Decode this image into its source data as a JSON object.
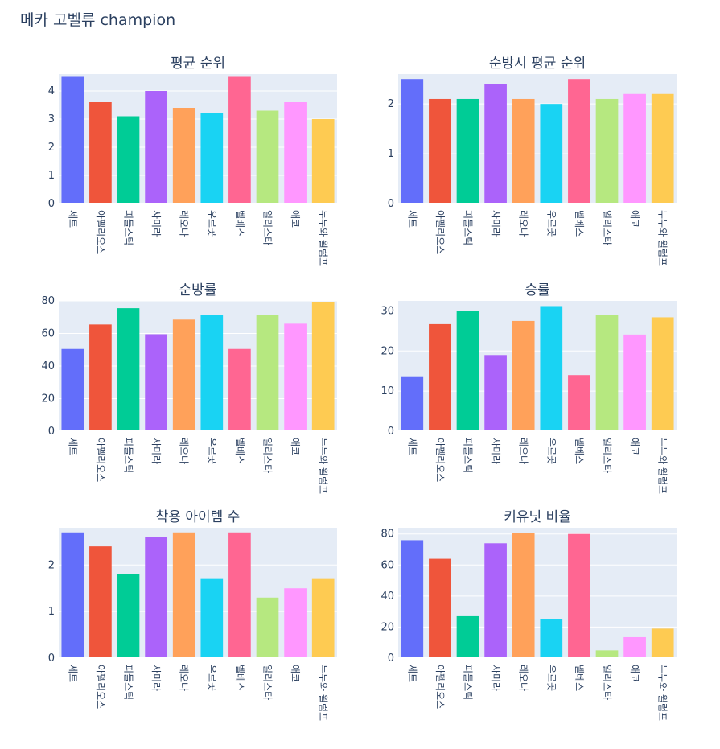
{
  "figure_title": "메카 고벨류 champion",
  "chart_data": [
    {
      "type": "bar",
      "title": "평균 순위",
      "categories": [
        "세트",
        "아펠리오스",
        "피들스틱",
        "사미라",
        "레오나",
        "우르곳",
        "벨베스",
        "일리스타",
        "애코",
        "누누와 윌럼프"
      ],
      "values": [
        4.5,
        3.6,
        3.1,
        4.0,
        3.4,
        3.2,
        4.5,
        3.3,
        3.6,
        3.0
      ],
      "ylim": [
        0,
        4.6
      ],
      "yticks": [
        0,
        1,
        2,
        3,
        4
      ],
      "colors": [
        "#636efa",
        "#ef553b",
        "#00cc96",
        "#ab63fa",
        "#ffa15a",
        "#19d3f3",
        "#ff6692",
        "#b6e880",
        "#ff97ff",
        "#fecb52"
      ]
    },
    {
      "type": "bar",
      "title": "순방시 평균 순위",
      "categories": [
        "세트",
        "아펠리오스",
        "피들스틱",
        "사미라",
        "레오나",
        "우르곳",
        "벨베스",
        "일리스타",
        "애코",
        "누누와 윌럼프"
      ],
      "values": [
        2.5,
        2.1,
        2.1,
        2.4,
        2.1,
        2.0,
        2.5,
        2.1,
        2.2,
        2.2
      ],
      "ylim": [
        0,
        2.6
      ],
      "yticks": [
        0,
        1,
        2
      ],
      "colors": [
        "#636efa",
        "#ef553b",
        "#00cc96",
        "#ab63fa",
        "#ffa15a",
        "#19d3f3",
        "#ff6692",
        "#b6e880",
        "#ff97ff",
        "#fecb52"
      ]
    },
    {
      "type": "bar",
      "title": "순방률",
      "categories": [
        "세트",
        "아펠리오스",
        "피들스틱",
        "사미라",
        "레오나",
        "우르곳",
        "벨베스",
        "일리스타",
        "애코",
        "누누와 윌럼프"
      ],
      "values": [
        50.5,
        65.5,
        75.5,
        59.5,
        68.5,
        71.5,
        50.5,
        71.5,
        66.0,
        79.5
      ],
      "ylim": [
        0,
        80
      ],
      "yticks": [
        0,
        20,
        40,
        60,
        80
      ],
      "colors": [
        "#636efa",
        "#ef553b",
        "#00cc96",
        "#ab63fa",
        "#ffa15a",
        "#19d3f3",
        "#ff6692",
        "#b6e880",
        "#ff97ff",
        "#fecb52"
      ]
    },
    {
      "type": "bar",
      "title": "승률",
      "categories": [
        "세트",
        "아펠리오스",
        "피들스틱",
        "사미라",
        "레오나",
        "우르곳",
        "벨베스",
        "일리스타",
        "애코",
        "누누와 윌럼프"
      ],
      "values": [
        13.7,
        26.7,
        30.0,
        19.0,
        27.5,
        31.2,
        14.0,
        29.0,
        24.1,
        28.4
      ],
      "ylim": [
        0,
        32.5
      ],
      "yticks": [
        0,
        10,
        20,
        30
      ],
      "colors": [
        "#636efa",
        "#ef553b",
        "#00cc96",
        "#ab63fa",
        "#ffa15a",
        "#19d3f3",
        "#ff6692",
        "#b6e880",
        "#ff97ff",
        "#fecb52"
      ]
    },
    {
      "type": "bar",
      "title": "착용 아이템 수",
      "categories": [
        "세트",
        "아펠리오스",
        "피들스틱",
        "사미라",
        "레오나",
        "우르곳",
        "벨베스",
        "일리스타",
        "애코",
        "누누와 윌럼프"
      ],
      "values": [
        2.7,
        2.4,
        1.8,
        2.6,
        2.7,
        1.7,
        2.7,
        1.3,
        1.5,
        1.7
      ],
      "ylim": [
        0,
        2.8
      ],
      "yticks": [
        0,
        1,
        2
      ],
      "colors": [
        "#636efa",
        "#ef553b",
        "#00cc96",
        "#ab63fa",
        "#ffa15a",
        "#19d3f3",
        "#ff6692",
        "#b6e880",
        "#ff97ff",
        "#fecb52"
      ]
    },
    {
      "type": "bar",
      "title": "키유닛 비율",
      "categories": [
        "세트",
        "아펠리오스",
        "피들스틱",
        "사미라",
        "레오나",
        "우르곳",
        "벨베스",
        "일리스타",
        "애코",
        "누누와 윌럼프"
      ],
      "values": [
        76.0,
        64.0,
        27.0,
        74.0,
        80.5,
        25.0,
        80.0,
        5.0,
        13.5,
        19.0
      ],
      "ylim": [
        0,
        84
      ],
      "yticks": [
        0,
        20,
        40,
        60,
        80
      ],
      "colors": [
        "#636efa",
        "#ef553b",
        "#00cc96",
        "#ab63fa",
        "#ffa15a",
        "#19d3f3",
        "#ff6692",
        "#b6e880",
        "#ff97ff",
        "#fecb52"
      ]
    }
  ]
}
